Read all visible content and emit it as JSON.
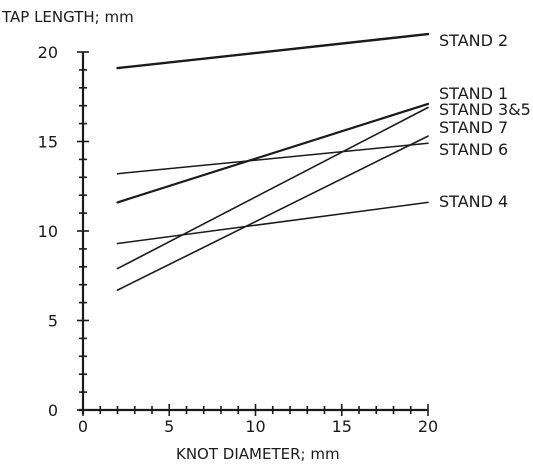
{
  "chart_data": {
    "type": "line",
    "ylabel": "TAP LENGTH; mm",
    "xlabel": "KNOT DIAMETER; mm",
    "xlim": [
      0,
      20
    ],
    "ylim": [
      0,
      20
    ],
    "x_ticks": [
      0,
      5,
      10,
      15,
      20
    ],
    "y_ticks": [
      0,
      5,
      10,
      15,
      20
    ],
    "grid": false,
    "series": [
      {
        "name": "STAND 2",
        "x": [
          2,
          20
        ],
        "y": [
          19.1,
          21.0
        ]
      },
      {
        "name": "STAND 1",
        "x": [
          2,
          20
        ],
        "y": [
          11.6,
          17.1
        ]
      },
      {
        "name": "STAND 3&5",
        "x": [
          2,
          20
        ],
        "y": [
          7.9,
          16.9
        ]
      },
      {
        "name": "STAND 7",
        "x": [
          2,
          20
        ],
        "y": [
          6.7,
          15.3
        ]
      },
      {
        "name": "STAND 6",
        "x": [
          2,
          20
        ],
        "y": [
          13.2,
          14.9
        ]
      },
      {
        "name": "STAND 4",
        "x": [
          2,
          20
        ],
        "y": [
          9.3,
          11.6
        ]
      }
    ]
  }
}
